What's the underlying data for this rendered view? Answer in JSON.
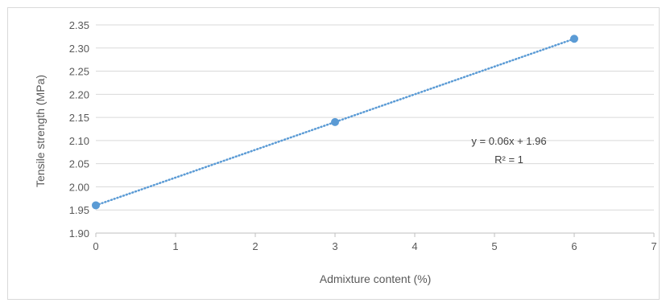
{
  "chart_data": {
    "type": "scatter",
    "title": "",
    "xlabel": "Admixture content (%)",
    "ylabel": "Tensile strength (MPa)",
    "xlim": [
      0,
      7
    ],
    "ylim": [
      1.9,
      2.35
    ],
    "x_ticks": [
      "0",
      "1",
      "2",
      "3",
      "4",
      "5",
      "6",
      "7"
    ],
    "y_ticks": [
      "1.90",
      "1.95",
      "2.00",
      "2.05",
      "2.10",
      "2.15",
      "2.20",
      "2.25",
      "2.30",
      "2.35"
    ],
    "grid": true,
    "series": [
      {
        "points": [
          {
            "x": 0,
            "y": 1.96
          },
          {
            "x": 3,
            "y": 2.14
          },
          {
            "x": 6,
            "y": 2.32
          }
        ],
        "color": "#5b9bd5"
      }
    ],
    "trendline": {
      "slope": 0.06,
      "intercept": 1.96,
      "equation": "y = 0.06x + 1.96",
      "r_squared": "R² = 1",
      "style": "dotted",
      "color": "#5b9bd5"
    }
  }
}
